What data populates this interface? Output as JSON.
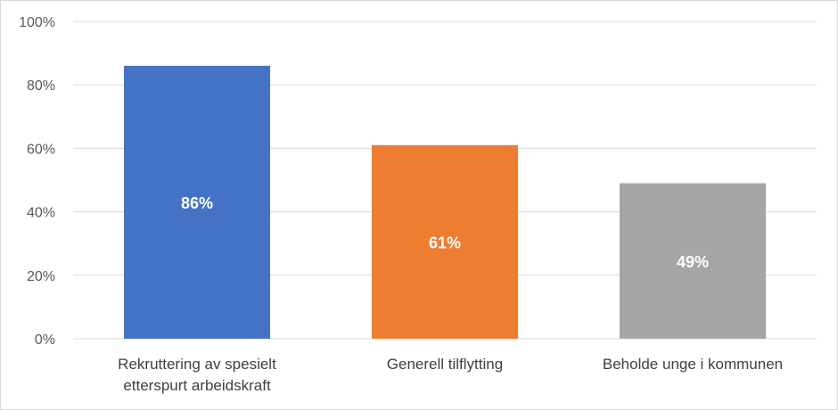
{
  "chart_data": {
    "type": "bar",
    "categories": [
      [
        "Rekruttering av spesielt",
        "etterspurt arbeidskraft"
      ],
      [
        "Generell tilflytting"
      ],
      [
        "Beholde unge i kommunen"
      ]
    ],
    "values": [
      86,
      61,
      49
    ],
    "data_labels": [
      "86%",
      "61%",
      "49%"
    ],
    "colors": [
      "#4472c4",
      "#ed7d31",
      "#a5a5a5"
    ],
    "ylim": [
      0,
      100
    ],
    "yticks": [
      0,
      20,
      40,
      60,
      80,
      100
    ],
    "ytick_labels": [
      "0%",
      "20%",
      "40%",
      "60%",
      "80%",
      "100%"
    ],
    "grid": true,
    "gridline_color": "#d9d9d9",
    "legend": "none",
    "title": "",
    "xlabel": "",
    "ylabel": ""
  }
}
